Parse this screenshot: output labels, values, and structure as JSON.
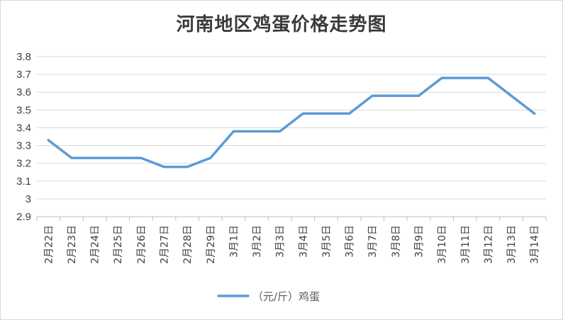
{
  "chart_data": {
    "type": "line",
    "title": "河南地区鸡蛋价格走势图",
    "xlabel": "",
    "ylabel": "",
    "ylim": [
      2.9,
      3.8
    ],
    "yticks": [
      "2.9",
      "3",
      "3.1",
      "3.2",
      "3.3",
      "3.4",
      "3.5",
      "3.6",
      "3.7",
      "3.8"
    ],
    "categories": [
      "2月22日",
      "2月23日",
      "2月24日",
      "2月25日",
      "2月26日",
      "2月27日",
      "2月28日",
      "2月29日",
      "3月1日",
      "3月2日",
      "3月3日",
      "3月4日",
      "3月5日",
      "3月6日",
      "3月7日",
      "3月8日",
      "3月9日",
      "3月10日",
      "3月11日",
      "3月12日",
      "3月13日",
      "3月14日"
    ],
    "series": [
      {
        "name": "（元/斤）鸡蛋",
        "color": "#5b9bd5",
        "values": [
          3.33,
          3.23,
          3.23,
          3.23,
          3.23,
          3.18,
          3.18,
          3.23,
          3.38,
          3.38,
          3.38,
          3.48,
          3.48,
          3.48,
          3.58,
          3.58,
          3.58,
          3.68,
          3.68,
          3.68,
          3.58,
          3.48
        ]
      }
    ],
    "grid": true,
    "legend": "bottom"
  }
}
